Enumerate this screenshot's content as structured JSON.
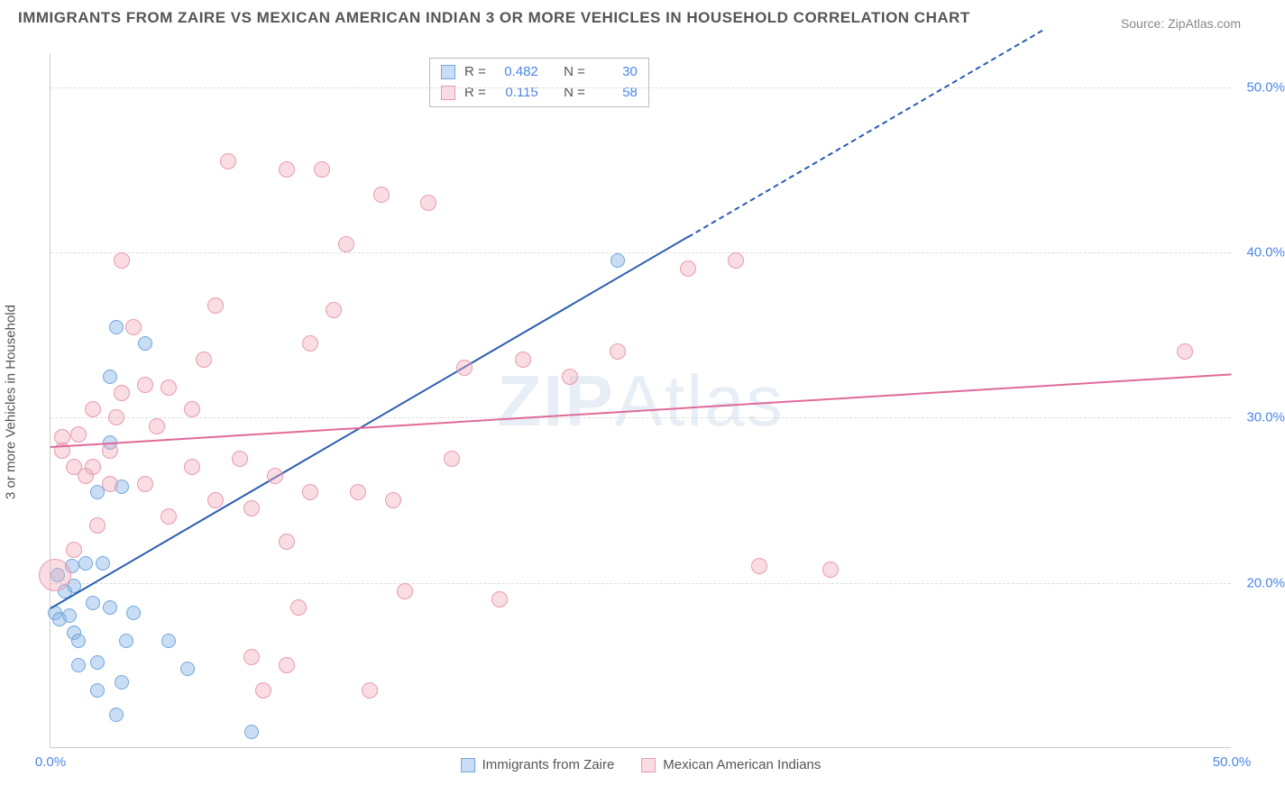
{
  "title": "IMMIGRANTS FROM ZAIRE VS MEXICAN AMERICAN INDIAN 3 OR MORE VEHICLES IN HOUSEHOLD CORRELATION CHART",
  "source": "Source: ZipAtlas.com",
  "ylabel": "3 or more Vehicles in Household",
  "watermark_a": "ZIP",
  "watermark_b": "Atlas",
  "chart": {
    "type": "scatter",
    "xlim": [
      0,
      50
    ],
    "ylim": [
      10,
      52
    ],
    "yticks": [
      {
        "v": 20,
        "label": "20.0%"
      },
      {
        "v": 30,
        "label": "30.0%"
      },
      {
        "v": 40,
        "label": "40.0%"
      },
      {
        "v": 50,
        "label": "50.0%"
      }
    ],
    "xticks": [
      {
        "v": 0,
        "label": "0.0%"
      },
      {
        "v": 50,
        "label": "50.0%"
      }
    ],
    "series": [
      {
        "name": "Immigrants from Zaire",
        "color_fill": "rgba(135,180,230,0.45)",
        "color_stroke": "#6fa8dc",
        "marker_r": 8,
        "r_label": "R =",
        "r_value": "0.482",
        "n_label": "N =",
        "n_value": "30",
        "trend": {
          "x1": 0,
          "y1": 18.5,
          "x2": 27,
          "y2": 41,
          "x2_ext": 42,
          "y2_ext": 53.5,
          "color": "#2a5db0"
        },
        "points": [
          [
            0.2,
            18.2
          ],
          [
            0.4,
            17.8
          ],
          [
            0.6,
            19.5
          ],
          [
            0.8,
            18.0
          ],
          [
            1.0,
            17.0
          ],
          [
            1.2,
            16.5
          ],
          [
            0.3,
            20.5
          ],
          [
            0.9,
            21.0
          ],
          [
            1.5,
            21.2
          ],
          [
            2.2,
            21.2
          ],
          [
            1.0,
            19.8
          ],
          [
            1.8,
            18.8
          ],
          [
            2.5,
            18.5
          ],
          [
            3.5,
            18.2
          ],
          [
            1.2,
            15.0
          ],
          [
            2.0,
            15.2
          ],
          [
            3.2,
            16.5
          ],
          [
            5.0,
            16.5
          ],
          [
            5.8,
            14.8
          ],
          [
            2.0,
            13.5
          ],
          [
            3.0,
            14.0
          ],
          [
            2.8,
            12.0
          ],
          [
            8.5,
            11.0
          ],
          [
            2.5,
            28.5
          ],
          [
            2.0,
            25.5
          ],
          [
            3.0,
            25.8
          ],
          [
            2.8,
            35.5
          ],
          [
            4.0,
            34.5
          ],
          [
            2.5,
            32.5
          ],
          [
            24.0,
            39.5
          ]
        ]
      },
      {
        "name": "Mexican American Indians",
        "color_fill": "rgba(240,170,185,0.40)",
        "color_stroke": "#e89bb0",
        "marker_r": 9,
        "r_label": "R =",
        "r_value": "0.115",
        "n_label": "N =",
        "n_value": "58",
        "trend": {
          "x1": 0,
          "y1": 28.3,
          "x2": 50,
          "y2": 32.7,
          "color": "#e06a9a"
        },
        "points": [
          [
            0.5,
            28.8
          ],
          [
            0.5,
            28.0
          ],
          [
            1.0,
            22.0
          ],
          [
            1.2,
            29.0
          ],
          [
            1.5,
            26.5
          ],
          [
            1.8,
            27.0
          ],
          [
            1.8,
            30.5
          ],
          [
            2.0,
            23.5
          ],
          [
            2.5,
            28.0
          ],
          [
            2.5,
            26.0
          ],
          [
            2.8,
            30.0
          ],
          [
            3.0,
            31.5
          ],
          [
            3.0,
            39.5
          ],
          [
            3.5,
            35.5
          ],
          [
            4.0,
            32.0
          ],
          [
            4.5,
            29.5
          ],
          [
            5.0,
            24.0
          ],
          [
            5.0,
            31.8
          ],
          [
            6.0,
            27.0
          ],
          [
            6.5,
            33.5
          ],
          [
            7.0,
            25.0
          ],
          [
            7.0,
            36.8
          ],
          [
            7.5,
            45.5
          ],
          [
            8.0,
            27.5
          ],
          [
            8.5,
            15.5
          ],
          [
            8.5,
            24.5
          ],
          [
            9.0,
            13.5
          ],
          [
            9.5,
            26.5
          ],
          [
            10.0,
            15.0
          ],
          [
            10.0,
            22.5
          ],
          [
            10.0,
            45.0
          ],
          [
            10.5,
            18.5
          ],
          [
            11.0,
            25.5
          ],
          [
            11.0,
            34.5
          ],
          [
            11.5,
            45.0
          ],
          [
            12.0,
            36.5
          ],
          [
            12.5,
            40.5
          ],
          [
            13.0,
            25.5
          ],
          [
            13.5,
            13.5
          ],
          [
            14.0,
            43.5
          ],
          [
            14.5,
            25.0
          ],
          [
            15.0,
            19.5
          ],
          [
            16.0,
            43.0
          ],
          [
            17.0,
            27.5
          ],
          [
            17.5,
            33.0
          ],
          [
            19.0,
            19.0
          ],
          [
            20.0,
            33.5
          ],
          [
            22.0,
            32.5
          ],
          [
            24.0,
            34.0
          ],
          [
            27.0,
            39.0
          ],
          [
            30.0,
            21.0
          ],
          [
            33.0,
            20.8
          ],
          [
            29.0,
            39.5
          ],
          [
            48.0,
            34.0
          ],
          [
            0.2,
            20.5,
            18
          ],
          [
            1.0,
            27.0
          ],
          [
            4.0,
            26.0
          ],
          [
            6.0,
            30.5
          ]
        ]
      }
    ]
  }
}
